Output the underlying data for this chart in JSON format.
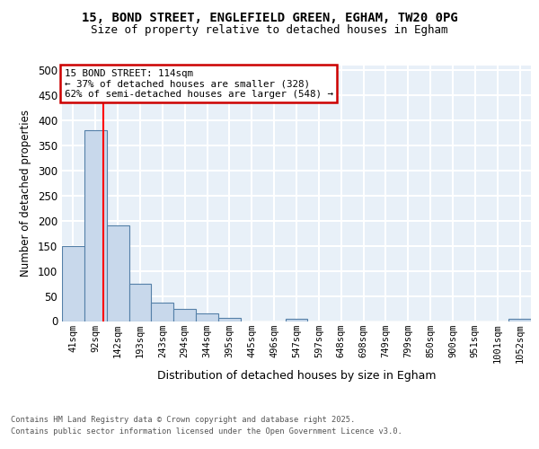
{
  "title1": "15, BOND STREET, ENGLEFIELD GREEN, EGHAM, TW20 0PG",
  "title2": "Size of property relative to detached houses in Egham",
  "xlabel": "Distribution of detached houses by size in Egham",
  "ylabel": "Number of detached properties",
  "bins": [
    "41sqm",
    "92sqm",
    "142sqm",
    "193sqm",
    "243sqm",
    "294sqm",
    "344sqm",
    "395sqm",
    "445sqm",
    "496sqm",
    "547sqm",
    "597sqm",
    "648sqm",
    "698sqm",
    "749sqm",
    "799sqm",
    "850sqm",
    "900sqm",
    "951sqm",
    "1001sqm",
    "1052sqm"
  ],
  "values": [
    150,
    380,
    190,
    75,
    37,
    25,
    15,
    6,
    0,
    0,
    4,
    0,
    0,
    0,
    0,
    0,
    0,
    0,
    0,
    0,
    4
  ],
  "bar_color": "#c8d8eb",
  "bar_edge_color": "#5580a8",
  "red_line_x": 1.37,
  "annotation_line1": "15 BOND STREET: 114sqm",
  "annotation_line2": "← 37% of detached houses are smaller (328)",
  "annotation_line3": "62% of semi-detached houses are larger (548) →",
  "annotation_box_color": "#ffffff",
  "annotation_border_color": "#cc0000",
  "ylim_max": 510,
  "yticks": [
    0,
    50,
    100,
    150,
    200,
    250,
    300,
    350,
    400,
    450,
    500
  ],
  "footer1": "Contains HM Land Registry data © Crown copyright and database right 2025.",
  "footer2": "Contains public sector information licensed under the Open Government Licence v3.0.",
  "bg_color": "#e8f0f8",
  "grid_color": "#ffffff"
}
